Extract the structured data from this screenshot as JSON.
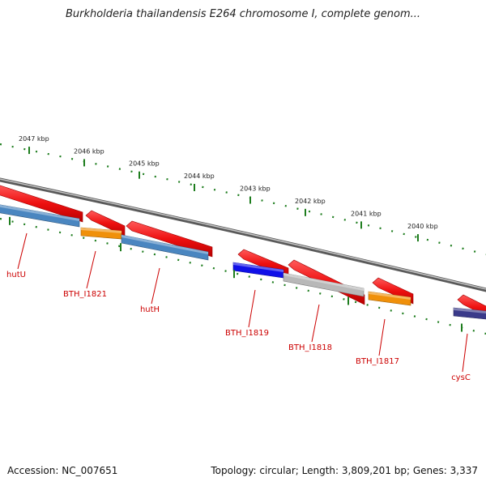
{
  "title": "Burkholderia thailandensis E264 chromosome I, complete genom...",
  "footer": {
    "accession": "Accession: NC_007651",
    "summary": "Topology: circular; Length: 3,809,201 bp; Genes: 3,337"
  },
  "colors": {
    "backbone": "#888888",
    "cds_forward": "#ee1111",
    "tick": "#1e7d1e",
    "tick_label": "#222222",
    "gene_label": "#cc0000"
  },
  "kbp_ticks": [
    "2047 kbp",
    "2046 kbp",
    "2045 kbp",
    "2044 kbp",
    "2043 kbp",
    "2042 kbp",
    "2041 kbp",
    "2040 kbp"
  ],
  "forward_genes": [
    "cds-a",
    "cds-b",
    "cds-c",
    "cds-d",
    "cds-e",
    "cds-f",
    "cds-g"
  ],
  "reverse_genes": [
    {
      "color": "#4a86c0"
    },
    {
      "color": "#f0900a"
    },
    {
      "color": "#4a86c0"
    },
    {
      "color": "#1010e8"
    },
    {
      "color": "#b8b8b8"
    },
    {
      "color": "#f0900a"
    },
    {
      "color": "#3a3a8a"
    }
  ],
  "gene_labels": [
    "hutU",
    "BTH_I1821",
    "hutH",
    "BTH_I1819",
    "BTH_I1818",
    "BTH_I1817",
    "cysC"
  ]
}
